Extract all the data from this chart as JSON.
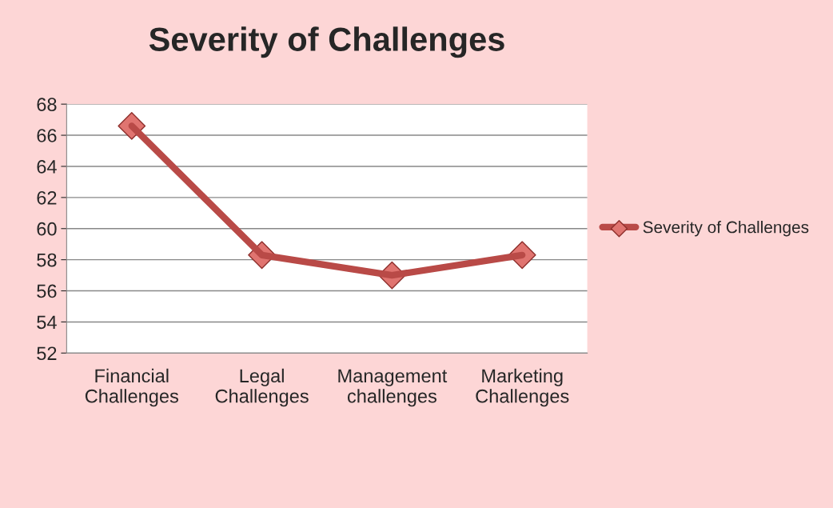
{
  "chart_data": {
    "type": "line",
    "title": "Severity of Challenges",
    "categories": [
      "Financial\nChallenges",
      "Legal\nChallenges",
      "Management\nchallenges",
      "Marketing\nChallenges"
    ],
    "series": [
      {
        "name": "Severity of Challenges",
        "color": "#b94a47",
        "values": [
          66.6,
          58.3,
          57.0,
          58.3
        ]
      }
    ],
    "ylim": [
      52,
      68
    ],
    "yticks": [
      52,
      54,
      56,
      58,
      60,
      62,
      64,
      66,
      68
    ],
    "grid": "y",
    "legend": "right",
    "marker": "diamond",
    "line_style": "solid"
  }
}
